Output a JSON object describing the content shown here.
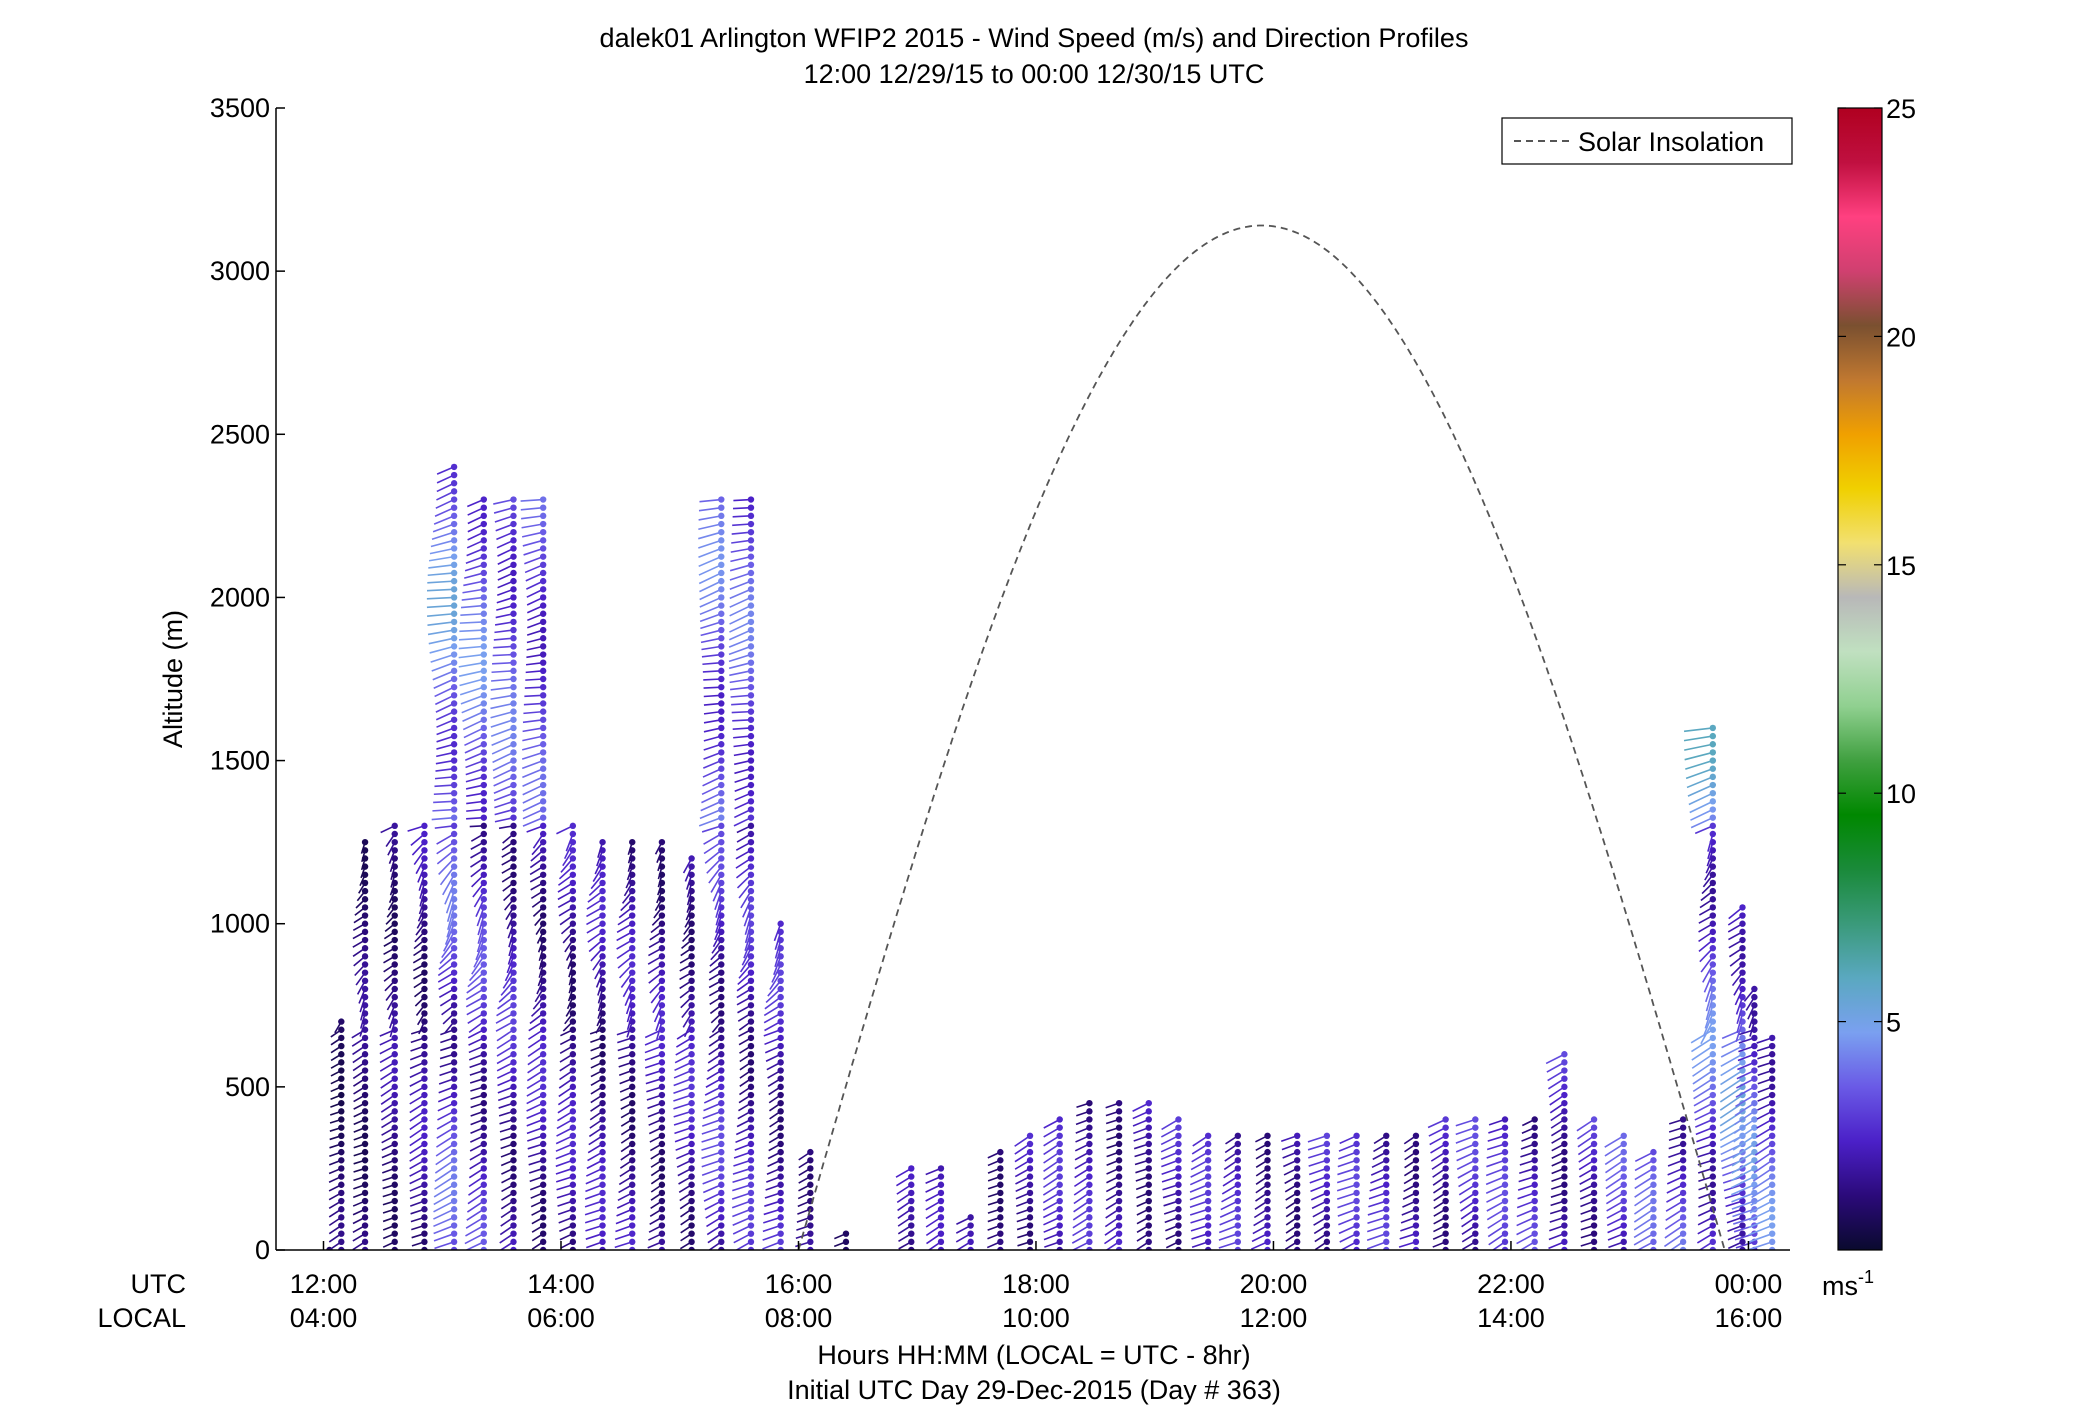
{
  "chart_data": {
    "type": "scatter",
    "title": "dalek01 Arlington WFIP2 2015 - Wind Speed (m/s) and Direction Profiles",
    "subtitle": "12:00 12/29/15 to 00:00 12/30/15  UTC",
    "ylabel": "Altitude (m)",
    "xlabel": "Hours HH:MM  (LOCAL = UTC - 8hr)",
    "xlabel2": "Initial UTC Day 29-Dec-2015 (Day # 363)",
    "ylim": [
      0,
      3500
    ],
    "xlim_hours_utc": [
      11.6,
      24.35
    ],
    "y_ticks": [
      "0",
      "500",
      "1000",
      "1500",
      "2000",
      "2500",
      "3000",
      "3500"
    ],
    "x_row_labels": {
      "utc": "UTC",
      "local": "LOCAL"
    },
    "x_ticks_utc": [
      "12:00",
      "14:00",
      "16:00",
      "18:00",
      "20:00",
      "22:00",
      "00:00"
    ],
    "x_ticks_local": [
      "04:00",
      "06:00",
      "08:00",
      "10:00",
      "12:00",
      "14:00",
      "16:00"
    ],
    "legend": {
      "label": "Solar Insolation",
      "placement": "top-right",
      "style": "dashed gray"
    },
    "colorbar": {
      "min": 0,
      "max": 25,
      "ticks": [
        "5",
        "10",
        "15",
        "20",
        "25"
      ],
      "unit_base": "ms",
      "unit_exp": "-1",
      "colors": [
        "#0a0a2e",
        "#2b0a7a",
        "#4b20c8",
        "#6a5ae6",
        "#7aa0f0",
        "#5aa8c0",
        "#3a9a7a",
        "#1a8a3a",
        "#008800",
        "#40a040",
        "#90d090",
        "#c0e0c0",
        "#b8b8b8",
        "#f2e070",
        "#f0d000",
        "#f0a000",
        "#c07830",
        "#7a5030",
        "#d04070",
        "#ff4080",
        "#c01040",
        "#b00020"
      ]
    },
    "solar_insolation": {
      "sunrise_utc": 16.0,
      "peak_utc": 19.9,
      "sunset_utc": 23.8,
      "peak_value": 3140
    },
    "wind_profiles": [
      {
        "t": 12.05,
        "top": 0,
        "bot": 0,
        "speed": 1.0
      },
      {
        "t": 12.15,
        "top": 700,
        "bot": 0,
        "speed": 1.2
      },
      {
        "t": 12.35,
        "top": 1250,
        "bot": 0,
        "speed": 1.5
      },
      {
        "t": 12.6,
        "top": 1300,
        "bot": 0,
        "speed": 1.8
      },
      {
        "t": 12.85,
        "top": 1300,
        "bot": 0,
        "speed": 2.0
      },
      {
        "t": 13.1,
        "top": 2400,
        "bot": 0,
        "speed": 3.5
      },
      {
        "t": 13.35,
        "top": 2300,
        "bot": 0,
        "speed": 3.0
      },
      {
        "t": 13.6,
        "top": 2300,
        "bot": 0,
        "speed": 2.6
      },
      {
        "t": 13.85,
        "top": 2300,
        "bot": 0,
        "speed": 2.3
      },
      {
        "t": 14.1,
        "top": 1300,
        "bot": 0,
        "speed": 2.2
      },
      {
        "t": 14.35,
        "top": 1250,
        "bot": 0,
        "speed": 2.2
      },
      {
        "t": 14.6,
        "top": 1250,
        "bot": 0,
        "speed": 2.2
      },
      {
        "t": 14.85,
        "top": 1250,
        "bot": 0,
        "speed": 2.2
      },
      {
        "t": 15.1,
        "top": 1200,
        "bot": 0,
        "speed": 2.4
      },
      {
        "t": 15.35,
        "top": 2300,
        "bot": 0,
        "speed": 2.8
      },
      {
        "t": 15.6,
        "top": 2300,
        "bot": 0,
        "speed": 2.6
      },
      {
        "t": 15.85,
        "top": 1000,
        "bot": 0,
        "speed": 2.6
      },
      {
        "t": 16.1,
        "top": 300,
        "bot": 0,
        "speed": 2.6
      },
      {
        "t": 16.4,
        "top": 50,
        "bot": 0,
        "speed": 2.0
      },
      {
        "t": 16.95,
        "top": 250,
        "bot": 0,
        "speed": 2.0
      },
      {
        "t": 17.2,
        "top": 250,
        "bot": 0,
        "speed": 2.0
      },
      {
        "t": 17.45,
        "top": 100,
        "bot": 0,
        "speed": 2.0
      },
      {
        "t": 17.7,
        "top": 300,
        "bot": 0,
        "speed": 2.2
      },
      {
        "t": 17.95,
        "top": 350,
        "bot": 0,
        "speed": 2.4
      },
      {
        "t": 18.2,
        "top": 400,
        "bot": 0,
        "speed": 2.5
      },
      {
        "t": 18.45,
        "top": 450,
        "bot": 0,
        "speed": 2.5
      },
      {
        "t": 18.7,
        "top": 450,
        "bot": 0,
        "speed": 2.5
      },
      {
        "t": 18.95,
        "top": 450,
        "bot": 0,
        "speed": 2.5
      },
      {
        "t": 19.2,
        "top": 400,
        "bot": 0,
        "speed": 2.5
      },
      {
        "t": 19.45,
        "top": 350,
        "bot": 0,
        "speed": 2.5
      },
      {
        "t": 19.7,
        "top": 350,
        "bot": 0,
        "speed": 2.6
      },
      {
        "t": 19.95,
        "top": 350,
        "bot": 0,
        "speed": 2.6
      },
      {
        "t": 20.2,
        "top": 350,
        "bot": 0,
        "speed": 2.6
      },
      {
        "t": 20.45,
        "top": 350,
        "bot": 0,
        "speed": 2.6
      },
      {
        "t": 20.7,
        "top": 350,
        "bot": 0,
        "speed": 2.7
      },
      {
        "t": 20.95,
        "top": 350,
        "bot": 0,
        "speed": 2.7
      },
      {
        "t": 21.2,
        "top": 350,
        "bot": 0,
        "speed": 2.8
      },
      {
        "t": 21.45,
        "top": 400,
        "bot": 0,
        "speed": 2.8
      },
      {
        "t": 21.7,
        "top": 400,
        "bot": 0,
        "speed": 2.8
      },
      {
        "t": 21.95,
        "top": 400,
        "bot": 0,
        "speed": 2.8
      },
      {
        "t": 22.2,
        "top": 400,
        "bot": 0,
        "speed": 2.9
      },
      {
        "t": 22.45,
        "top": 600,
        "bot": 0,
        "speed": 2.9
      },
      {
        "t": 22.7,
        "top": 400,
        "bot": 0,
        "speed": 3.0
      },
      {
        "t": 22.95,
        "top": 350,
        "bot": 0,
        "speed": 3.2
      },
      {
        "t": 23.2,
        "top": 300,
        "bot": 0,
        "speed": 3.4
      },
      {
        "t": 23.45,
        "top": 400,
        "bot": 0,
        "speed": 3.6
      },
      {
        "t": 23.7,
        "top": 1600,
        "bot": 0,
        "speed": 4.0
      },
      {
        "t": 23.95,
        "top": 1050,
        "bot": 0,
        "speed": 4.4
      },
      {
        "t": 24.05,
        "top": 800,
        "bot": 0,
        "speed": 4.2
      },
      {
        "t": 24.2,
        "top": 650,
        "bot": 0,
        "speed": 4.0
      }
    ]
  }
}
